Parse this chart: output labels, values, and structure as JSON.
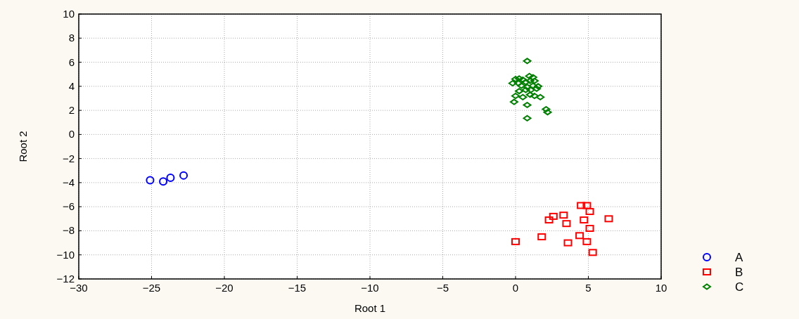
{
  "chart_data": {
    "type": "scatter",
    "xlabel": "Root 1",
    "ylabel": "Root 2",
    "xlim": [
      -30,
      10
    ],
    "xticks": [
      -30,
      -25,
      -20,
      -15,
      -10,
      -5,
      0,
      5,
      10
    ],
    "ylim": [
      -12,
      10
    ],
    "yticks": [
      -12,
      -10,
      -8,
      -6,
      -4,
      -2,
      0,
      2,
      4,
      6,
      8,
      10
    ],
    "grid": true,
    "legend": "bottom right",
    "series": [
      {
        "name": "A",
        "color": "#0000ff",
        "marker": "circle",
        "x": [
          -25.1,
          -24.2,
          -23.7,
          -22.8
        ],
        "values": [
          -3.8,
          -3.9,
          -3.6,
          -3.4
        ]
      },
      {
        "name": "B",
        "color": "#ff0000",
        "marker": "square",
        "x": [
          0.0,
          1.8,
          2.3,
          2.6,
          3.3,
          3.5,
          3.6,
          4.5,
          4.9,
          5.1,
          4.7,
          5.1,
          4.4,
          4.9,
          5.3,
          6.4
        ],
        "values": [
          -8.9,
          -8.5,
          -7.1,
          -6.8,
          -6.7,
          -7.4,
          -9.0,
          -5.9,
          -5.9,
          -6.4,
          -7.1,
          -7.8,
          -8.4,
          -8.9,
          -9.8,
          -7.0
        ]
      },
      {
        "name": "C",
        "color": "#008000",
        "marker": "diamond",
        "x": [
          0.8,
          0.0,
          0.25,
          0.5,
          0.95,
          1.2,
          -0.2,
          0.2,
          0.7,
          1.0,
          1.3,
          0.4,
          0.8,
          1.2,
          1.55,
          0.7,
          1.05,
          1.45,
          0.25,
          0.0,
          0.5,
          1.0,
          1.3,
          1.7,
          -0.1,
          0.8,
          2.1,
          2.2,
          0.8
        ],
        "values": [
          6.1,
          4.6,
          4.65,
          4.55,
          4.85,
          4.75,
          4.25,
          4.25,
          4.35,
          4.45,
          4.45,
          4.05,
          3.95,
          4.05,
          4.0,
          3.7,
          3.7,
          3.8,
          3.6,
          3.2,
          3.1,
          3.3,
          3.2,
          3.1,
          2.7,
          2.45,
          2.1,
          1.85,
          1.35
        ]
      }
    ]
  }
}
